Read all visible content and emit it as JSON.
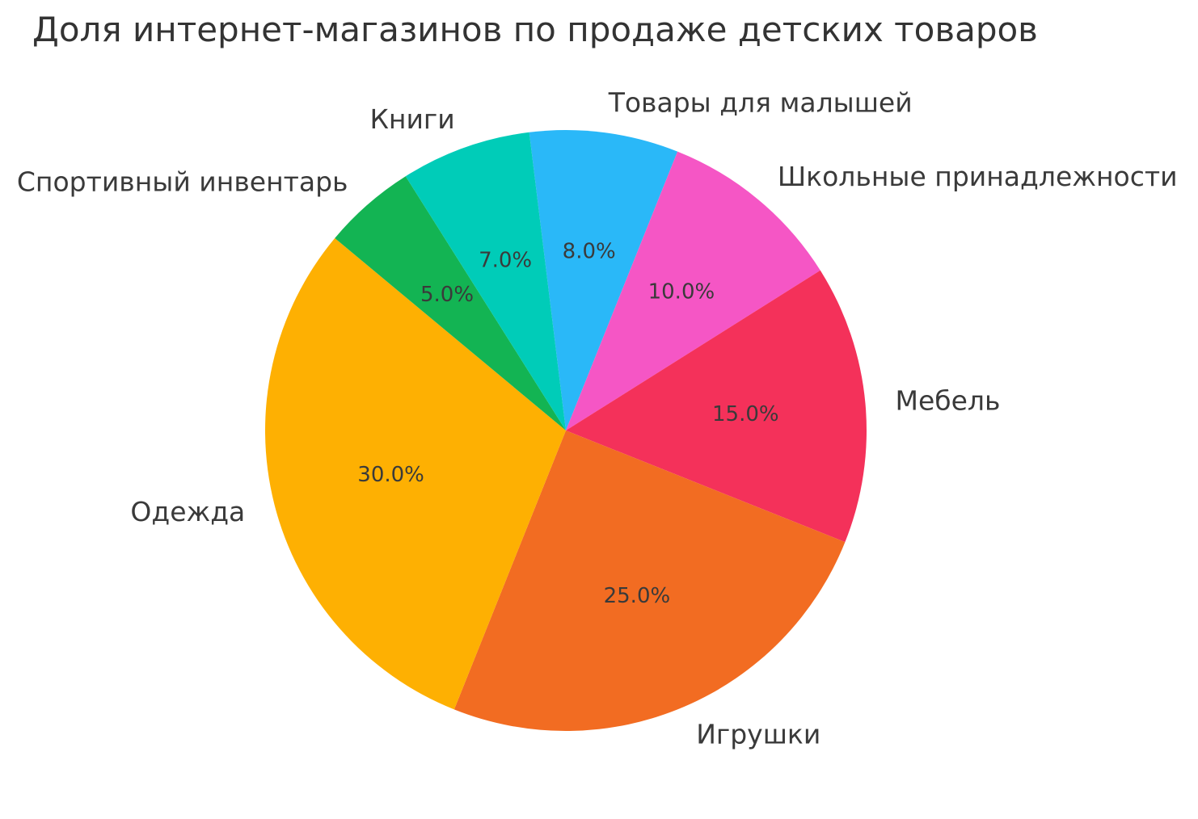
{
  "chart_data": {
    "type": "pie",
    "title": "Доля интернет-магазинов по продаже детских товаров",
    "labels": [
      "Товары для малышей",
      "Школьные принадлежности",
      "Мебель",
      "Игрушки",
      "Одежда",
      "Спортивный инвентарь",
      "Книги"
    ],
    "values": [
      8.0,
      10.0,
      15.0,
      25.0,
      30.0,
      5.0,
      7.0
    ],
    "percent_labels": [
      "8.0%",
      "10.0%",
      "15.0%",
      "25.0%",
      "30.0%",
      "5.0%",
      "7.0%"
    ],
    "colors": [
      "#2ab8f8",
      "#f556c5",
      "#f4315a",
      "#f26c22",
      "#feb002",
      "#13b453",
      "#00ccb8"
    ],
    "start_angle_deg": -7,
    "direction": "clockwise",
    "center": [
      700,
      533
    ],
    "radius": 372,
    "label_distance": 1.1,
    "pct_distance": 0.6,
    "legend": "none",
    "text_color": "#3a3a3a",
    "background_color": "#ffffff"
  }
}
